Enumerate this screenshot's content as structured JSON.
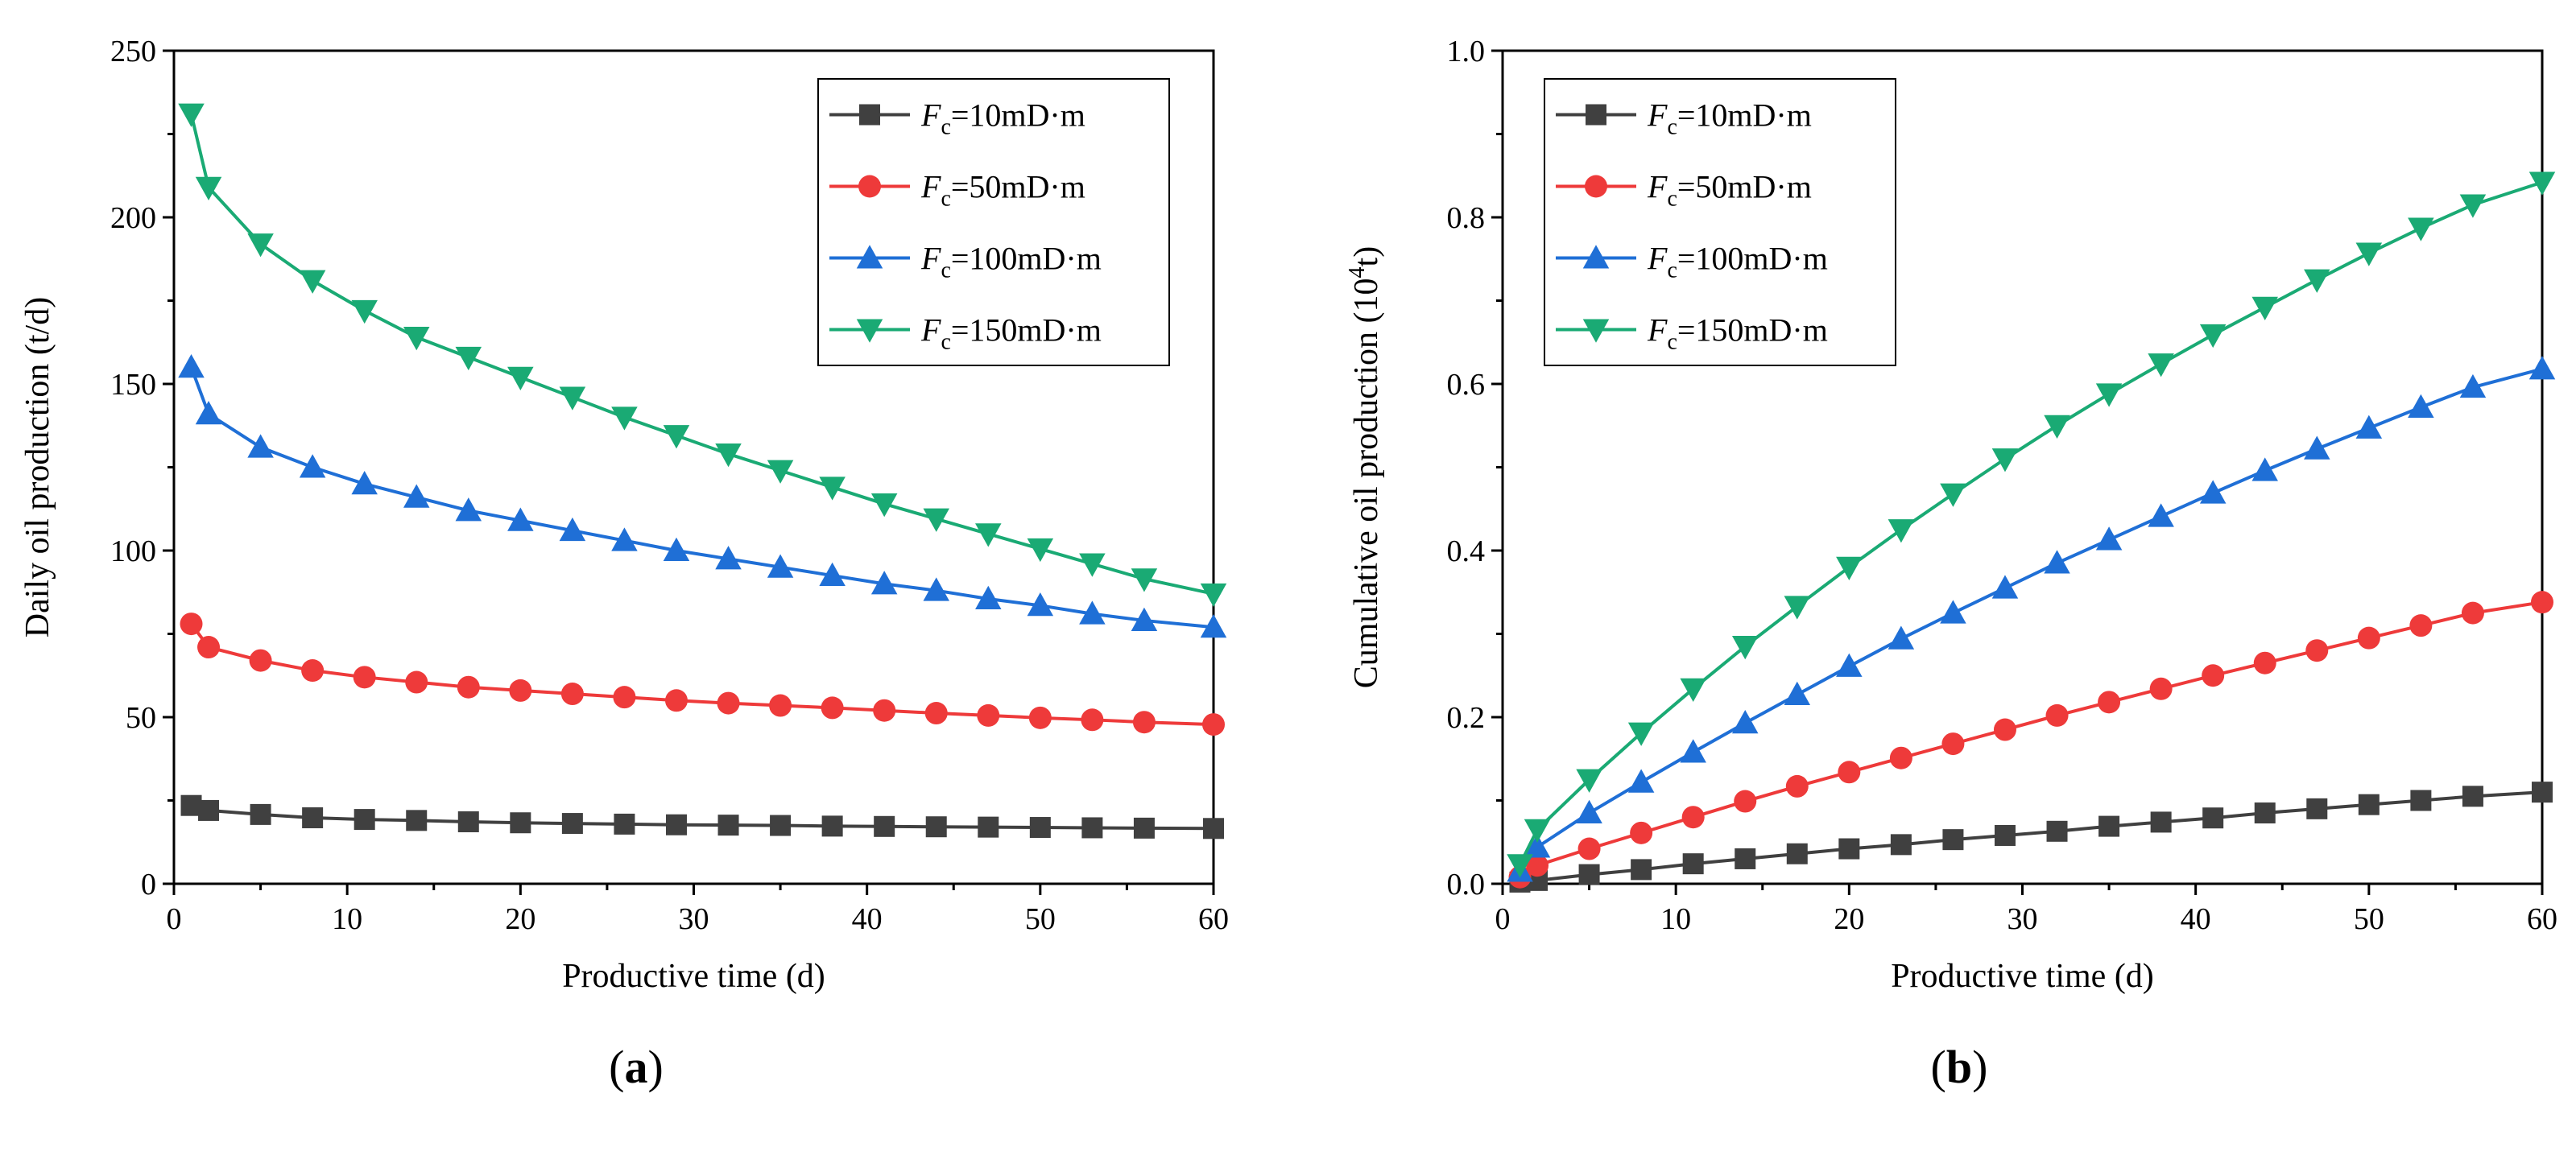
{
  "chart_data": [
    {
      "type": "line",
      "panel_label": "a",
      "xlabel": "Productive time (d)",
      "ylabel": "Daily oil production (t/d)",
      "xlim": [
        0,
        60
      ],
      "ylim": [
        0,
        250
      ],
      "xticks": [
        "0",
        "10",
        "20",
        "30",
        "40",
        "50",
        "60"
      ],
      "yticks": [
        "0",
        "50",
        "100",
        "150",
        "200",
        "250"
      ],
      "legend_position": "top-right",
      "x": [
        1,
        2,
        5,
        8,
        11,
        14,
        17,
        20,
        23,
        26,
        29,
        32,
        35,
        38,
        41,
        44,
        47,
        50,
        53,
        56,
        60
      ],
      "series": [
        {
          "name": "Fc=10mD·m",
          "label_sym": "F",
          "label_sub": "c",
          "label_rest": "=10mD·m",
          "color": "#404040",
          "marker": "square",
          "values": [
            23.5,
            22,
            20.8,
            19.8,
            19.3,
            19.0,
            18.6,
            18.3,
            18.1,
            17.9,
            17.7,
            17.6,
            17.5,
            17.3,
            17.2,
            17.1,
            17.0,
            16.9,
            16.8,
            16.7,
            16.6
          ]
        },
        {
          "name": "Fc=50mD·m",
          "label_sym": "F",
          "label_sub": "c",
          "label_rest": "=50mD·m",
          "color": "#ee3a3a",
          "marker": "circle",
          "values": [
            78,
            71,
            67,
            64,
            62,
            60.5,
            59,
            58,
            57,
            56,
            55,
            54.2,
            53.5,
            52.8,
            52,
            51.2,
            50.5,
            49.8,
            49.2,
            48.5,
            47.8
          ]
        },
        {
          "name": "Fc=100mD·m",
          "label_sym": "F",
          "label_sub": "c",
          "label_rest": "=100mD·m",
          "color": "#1f6fd6",
          "marker": "triangle-up",
          "values": [
            155,
            141,
            131,
            125,
            120,
            116,
            112,
            109,
            106,
            103,
            100,
            97.5,
            95,
            92.5,
            90,
            88,
            85.5,
            83.5,
            81,
            79,
            77
          ]
        },
        {
          "name": "Fc=150mD·m",
          "label_sym": "F",
          "label_sub": "c",
          "label_rest": "=150mD·m",
          "color": "#1aaa74",
          "marker": "triangle-down",
          "values": [
            231,
            209,
            192,
            181,
            172,
            164,
            158,
            152,
            146,
            140,
            134.5,
            129,
            124,
            119,
            114,
            109.5,
            105,
            100.5,
            96,
            91.5,
            87
          ]
        }
      ]
    },
    {
      "type": "line",
      "panel_label": "b",
      "xlabel": "Productive time (d)",
      "ylabel_pre": "Cumulative oil production (10",
      "ylabel_sup": "4",
      "ylabel_post": "t)",
      "xlim": [
        0,
        60
      ],
      "ylim": [
        0,
        1.0
      ],
      "xticks": [
        "0",
        "10",
        "20",
        "30",
        "40",
        "50",
        "60"
      ],
      "yticks": [
        "0.0",
        "0.2",
        "0.4",
        "0.6",
        "0.8",
        "1.0"
      ],
      "legend_position": "top-left",
      "x": [
        1,
        2,
        5,
        8,
        11,
        14,
        17,
        20,
        23,
        26,
        29,
        32,
        35,
        38,
        41,
        44,
        47,
        50,
        53,
        56,
        60
      ],
      "series": [
        {
          "name": "Fc=10mD·m",
          "label_sym": "F",
          "label_sub": "c",
          "label_rest": "=10mD·m",
          "color": "#404040",
          "marker": "square",
          "values": [
            0.002,
            0.004,
            0.011,
            0.017,
            0.024,
            0.03,
            0.036,
            0.042,
            0.047,
            0.053,
            0.058,
            0.063,
            0.069,
            0.074,
            0.079,
            0.085,
            0.09,
            0.095,
            0.1,
            0.105,
            0.11
          ]
        },
        {
          "name": "Fc=50mD·m",
          "label_sym": "F",
          "label_sub": "c",
          "label_rest": "=50mD·m",
          "color": "#ee3a3a",
          "marker": "circle",
          "values": [
            0.008,
            0.022,
            0.042,
            0.061,
            0.08,
            0.099,
            0.117,
            0.134,
            0.151,
            0.168,
            0.185,
            0.202,
            0.218,
            0.234,
            0.25,
            0.265,
            0.28,
            0.295,
            0.31,
            0.325,
            0.338
          ]
        },
        {
          "name": "Fc=100mD·m",
          "label_sym": "F",
          "label_sub": "c",
          "label_rest": "=100mD·m",
          "color": "#1f6fd6",
          "marker": "triangle-up",
          "values": [
            0.015,
            0.044,
            0.085,
            0.122,
            0.158,
            0.193,
            0.227,
            0.261,
            0.294,
            0.325,
            0.355,
            0.385,
            0.413,
            0.441,
            0.469,
            0.496,
            0.522,
            0.547,
            0.572,
            0.596,
            0.618
          ]
        },
        {
          "name": "Fc=150mD·m",
          "label_sym": "F",
          "label_sub": "c",
          "label_rest": "=150mD·m",
          "color": "#1aaa74",
          "marker": "triangle-down",
          "values": [
            0.023,
            0.065,
            0.125,
            0.181,
            0.234,
            0.285,
            0.333,
            0.38,
            0.425,
            0.468,
            0.51,
            0.55,
            0.588,
            0.624,
            0.659,
            0.692,
            0.725,
            0.757,
            0.787,
            0.815,
            0.842
          ]
        }
      ]
    }
  ]
}
